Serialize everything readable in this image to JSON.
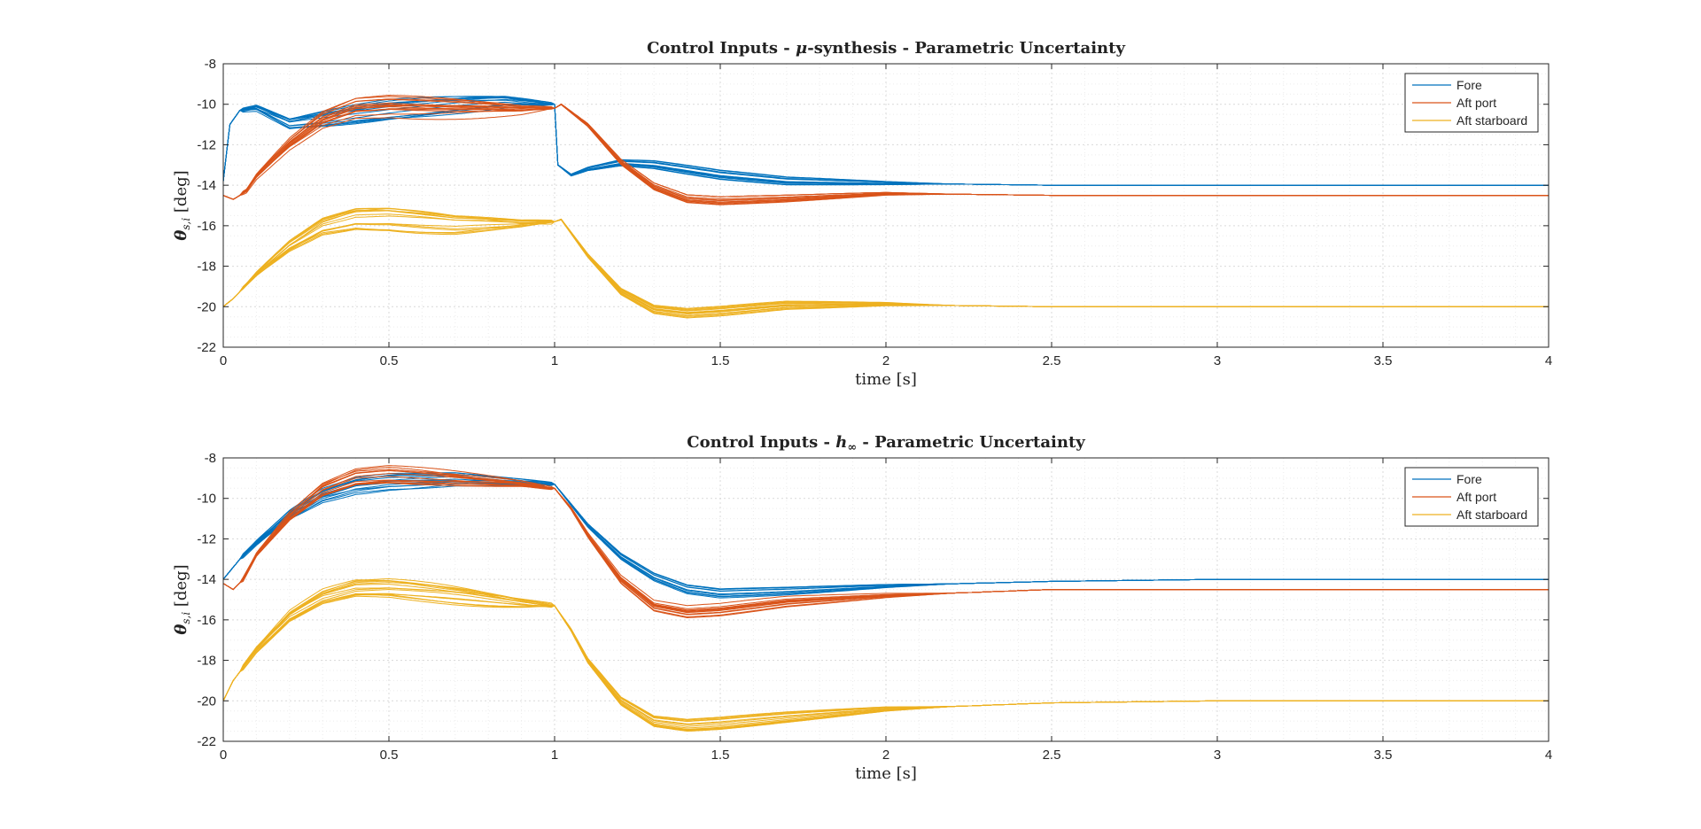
{
  "chart_data": [
    {
      "type": "line",
      "title": "Control Inputs - μ-synthesis - Parametric Uncertainty",
      "title_parts": [
        "Control Inputs - ",
        "μ",
        "-synthesis - Parametric Uncertainty"
      ],
      "xlabel": "time [s]",
      "ylabel_parts": [
        "θ",
        "s,i",
        " [deg]"
      ],
      "xlim": [
        0,
        4
      ],
      "ylim": [
        -22,
        -8
      ],
      "x_ticks": [
        0,
        0.5,
        1,
        1.5,
        2,
        2.5,
        3,
        3.5,
        4
      ],
      "y_ticks": [
        -22,
        -20,
        -18,
        -16,
        -14,
        -12,
        -10,
        -8
      ],
      "x_tick_labels": [
        "0",
        "0.5",
        "1",
        "1.5",
        "2",
        "2.5",
        "3",
        "3.5",
        "4"
      ],
      "y_tick_labels": [
        "-22",
        "-20",
        "-18",
        "-16",
        "-14",
        "-12",
        "-10",
        "-8"
      ],
      "grid": "on (major and minor)",
      "legend_placement": "top-right",
      "legend": [
        "Fore",
        "Aft port",
        "Aft starboard"
      ],
      "series": [
        {
          "name": "Fore",
          "color": "#0072BD",
          "x": [
            0,
            0.02,
            0.05,
            0.1,
            0.15,
            0.2,
            0.3,
            0.5,
            0.7,
            0.85,
            1.0,
            1.01,
            1.05,
            1.1,
            1.2,
            1.3,
            1.5,
            1.7,
            2.0,
            2.5,
            3.0,
            4.0
          ],
          "y": [
            -13.8,
            -11.0,
            -10.3,
            -10.2,
            -10.6,
            -11.0,
            -10.8,
            -10.4,
            -10.1,
            -9.9,
            -10.0,
            -13.0,
            -13.5,
            -13.2,
            -12.9,
            -13.0,
            -13.5,
            -13.8,
            -13.9,
            -14.0,
            -14.0,
            -14.0
          ]
        },
        {
          "name": "Aft port",
          "color": "#D95319",
          "x": [
            0,
            0.03,
            0.07,
            0.1,
            0.2,
            0.3,
            0.4,
            0.5,
            0.7,
            0.9,
            1.0,
            1.02,
            1.1,
            1.2,
            1.3,
            1.4,
            1.5,
            1.7,
            2.0,
            2.5,
            3.0,
            4.0
          ],
          "y": [
            -14.5,
            -14.7,
            -14.3,
            -13.6,
            -12.0,
            -10.8,
            -10.2,
            -10.1,
            -10.2,
            -10.3,
            -10.2,
            -10.0,
            -11.0,
            -12.8,
            -14.0,
            -14.6,
            -14.7,
            -14.6,
            -14.4,
            -14.5,
            -14.5,
            -14.5
          ]
        },
        {
          "name": "Aft starboard",
          "color": "#EDB120",
          "x": [
            0,
            0.03,
            0.1,
            0.2,
            0.3,
            0.4,
            0.5,
            0.7,
            0.9,
            1.0,
            1.02,
            1.1,
            1.2,
            1.3,
            1.4,
            1.5,
            1.7,
            2.0,
            2.5,
            3.0,
            4.0
          ],
          "y": [
            -20.0,
            -19.6,
            -18.4,
            -17.0,
            -16.0,
            -15.6,
            -15.6,
            -15.9,
            -15.9,
            -15.8,
            -15.7,
            -17.5,
            -19.3,
            -20.2,
            -20.4,
            -20.3,
            -20.0,
            -19.9,
            -20.0,
            -20.0,
            -20.0
          ]
        }
      ]
    },
    {
      "type": "line",
      "title": "Control Inputs - h∞ - Parametric Uncertainty",
      "title_parts": [
        "Control Inputs - ",
        "h",
        "∞",
        " - Parametric Uncertainty"
      ],
      "xlabel": "time [s]",
      "ylabel_parts": [
        "θ",
        "s,i",
        " [deg]"
      ],
      "xlim": [
        0,
        4
      ],
      "ylim": [
        -22,
        -8
      ],
      "x_ticks": [
        0,
        0.5,
        1,
        1.5,
        2,
        2.5,
        3,
        3.5,
        4
      ],
      "y_ticks": [
        -22,
        -20,
        -18,
        -16,
        -14,
        -12,
        -10,
        -8
      ],
      "x_tick_labels": [
        "0",
        "0.5",
        "1",
        "1.5",
        "2",
        "2.5",
        "3",
        "3.5",
        "4"
      ],
      "y_tick_labels": [
        "-22",
        "-20",
        "-18",
        "-16",
        "-14",
        "-12",
        "-10",
        "-8"
      ],
      "grid": "on (major and minor)",
      "legend_placement": "top-right",
      "legend": [
        "Fore",
        "Aft port",
        "Aft starboard"
      ],
      "series": [
        {
          "name": "Fore",
          "color": "#0072BD",
          "x": [
            0,
            0.05,
            0.1,
            0.2,
            0.3,
            0.4,
            0.5,
            0.7,
            0.9,
            1.0,
            1.05,
            1.1,
            1.2,
            1.3,
            1.4,
            1.5,
            1.7,
            2.0,
            2.5,
            3.0,
            4.0
          ],
          "y": [
            -14.0,
            -13.0,
            -12.2,
            -10.8,
            -9.8,
            -9.3,
            -9.1,
            -9.0,
            -9.2,
            -9.3,
            -10.3,
            -11.3,
            -12.8,
            -13.8,
            -14.4,
            -14.6,
            -14.5,
            -14.3,
            -14.1,
            -14.0,
            -14.0
          ]
        },
        {
          "name": "Aft port",
          "color": "#D95319",
          "x": [
            0,
            0.03,
            0.06,
            0.1,
            0.2,
            0.3,
            0.4,
            0.5,
            0.7,
            0.9,
            1.0,
            1.05,
            1.1,
            1.2,
            1.3,
            1.4,
            1.5,
            1.7,
            2.0,
            2.5,
            3.0,
            4.0
          ],
          "y": [
            -14.2,
            -14.5,
            -14.0,
            -12.8,
            -10.9,
            -9.6,
            -9.0,
            -8.9,
            -9.1,
            -9.3,
            -9.5,
            -10.5,
            -11.8,
            -14.0,
            -15.3,
            -15.6,
            -15.5,
            -15.1,
            -14.8,
            -14.5,
            -14.5,
            -14.5
          ]
        },
        {
          "name": "Aft starboard",
          "color": "#EDB120",
          "x": [
            0,
            0.03,
            0.1,
            0.2,
            0.3,
            0.4,
            0.5,
            0.7,
            0.9,
            1.0,
            1.05,
            1.1,
            1.2,
            1.3,
            1.4,
            1.5,
            1.7,
            2.0,
            2.5,
            3.0,
            4.0
          ],
          "y": [
            -20.0,
            -19.0,
            -17.5,
            -15.9,
            -15.0,
            -14.6,
            -14.6,
            -14.9,
            -15.2,
            -15.3,
            -16.5,
            -18.0,
            -20.0,
            -21.0,
            -21.2,
            -21.1,
            -20.8,
            -20.4,
            -20.1,
            -20.0,
            -20.0
          ]
        }
      ]
    }
  ]
}
